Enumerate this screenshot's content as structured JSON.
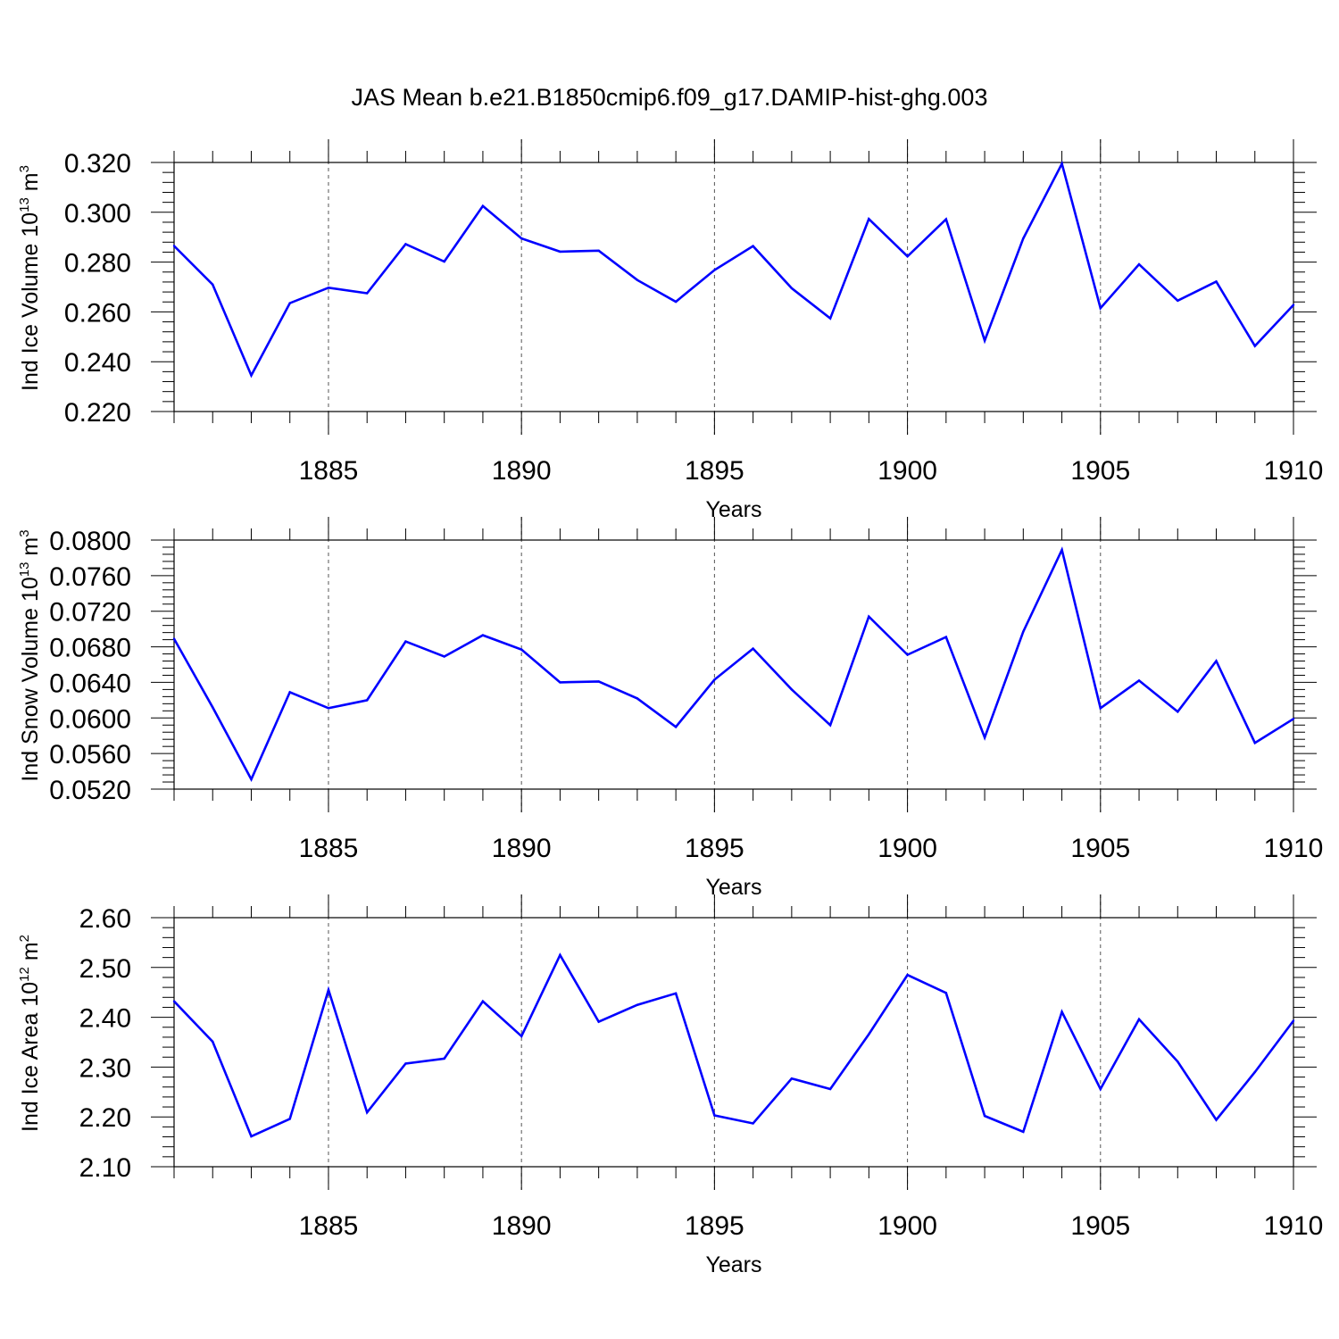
{
  "title": "JAS Mean b.e21.B1850cmip6.f09_g17.DAMIP-hist-ghg.003",
  "colors": {
    "line": "#0000ff",
    "axis": "#000000",
    "grid": "#555555"
  },
  "chart_data": [
    {
      "type": "line",
      "ylabel": "Ind Ice Volume",
      "yunit": {
        "base": "10",
        "exp": "13",
        "unit": "m",
        "unit_exp": "3"
      },
      "xlabel": "Years",
      "xlim": [
        1881,
        1910
      ],
      "ylim": [
        0.22,
        0.32
      ],
      "yticks": [
        "0.220",
        "0.240",
        "0.260",
        "0.280",
        "0.300",
        "0.320"
      ],
      "xticks": [
        "1885",
        "1890",
        "1895",
        "1900",
        "1905",
        "1910"
      ],
      "grid": "vertical dashed at major x ticks",
      "x": [
        1881,
        1882,
        1883,
        1884,
        1885,
        1886,
        1887,
        1888,
        1889,
        1890,
        1891,
        1892,
        1893,
        1894,
        1895,
        1896,
        1897,
        1898,
        1899,
        1900,
        1901,
        1902,
        1903,
        1904,
        1905,
        1906,
        1907,
        1908,
        1909,
        1910
      ],
      "values": [
        0.2865,
        0.271,
        0.2345,
        0.2635,
        0.2697,
        0.2675,
        0.2872,
        0.2802,
        0.3025,
        0.2895,
        0.2842,
        0.2846,
        0.2728,
        0.2641,
        0.2768,
        0.2864,
        0.2695,
        0.2574,
        0.2973,
        0.2823,
        0.2972,
        0.2485,
        0.2895,
        0.3195,
        0.2615,
        0.2791,
        0.2645,
        0.2722,
        0.2463,
        0.2628
      ]
    },
    {
      "type": "line",
      "ylabel": "Ind Snow Volume",
      "yunit": {
        "base": "10",
        "exp": "13",
        "unit": "m",
        "unit_exp": "3"
      },
      "xlabel": "Years",
      "xlim": [
        1881,
        1910
      ],
      "ylim": [
        0.052,
        0.08
      ],
      "yticks": [
        "0.0520",
        "0.0560",
        "0.0600",
        "0.0640",
        "0.0680",
        "0.0720",
        "0.0760",
        "0.0800"
      ],
      "xticks": [
        "1885",
        "1890",
        "1895",
        "1900",
        "1905",
        "1910"
      ],
      "grid": "vertical dashed at major x ticks",
      "x": [
        1881,
        1882,
        1883,
        1884,
        1885,
        1886,
        1887,
        1888,
        1889,
        1890,
        1891,
        1892,
        1893,
        1894,
        1895,
        1896,
        1897,
        1898,
        1899,
        1900,
        1901,
        1902,
        1903,
        1904,
        1905,
        1906,
        1907,
        1908,
        1909,
        1910
      ],
      "values": [
        0.0689,
        0.0612,
        0.0531,
        0.0629,
        0.0611,
        0.062,
        0.0686,
        0.0669,
        0.0693,
        0.0677,
        0.064,
        0.0641,
        0.0622,
        0.059,
        0.0643,
        0.0678,
        0.0632,
        0.0592,
        0.0714,
        0.0671,
        0.0691,
        0.0578,
        0.0697,
        0.0789,
        0.0611,
        0.0642,
        0.0607,
        0.0664,
        0.0572,
        0.0599
      ]
    },
    {
      "type": "line",
      "ylabel": "Ind Ice Area",
      "yunit": {
        "base": "10",
        "exp": "12",
        "unit": "m",
        "unit_exp": "2"
      },
      "xlabel": "Years",
      "xlim": [
        1881,
        1910
      ],
      "ylim": [
        2.1,
        2.6
      ],
      "yticks": [
        "2.10",
        "2.20",
        "2.30",
        "2.40",
        "2.50",
        "2.60"
      ],
      "xticks": [
        "1885",
        "1890",
        "1895",
        "1900",
        "1905",
        "1910"
      ],
      "grid": "vertical dashed at major x ticks",
      "x": [
        1881,
        1882,
        1883,
        1884,
        1885,
        1886,
        1887,
        1888,
        1889,
        1890,
        1891,
        1892,
        1893,
        1894,
        1895,
        1896,
        1897,
        1898,
        1899,
        1900,
        1901,
        1902,
        1903,
        1904,
        1905,
        1906,
        1907,
        1908,
        1909,
        1910
      ],
      "values": [
        2.432,
        2.351,
        2.161,
        2.196,
        2.455,
        2.209,
        2.307,
        2.317,
        2.432,
        2.362,
        2.525,
        2.391,
        2.425,
        2.448,
        2.203,
        2.187,
        2.277,
        2.256,
        2.366,
        2.485,
        2.449,
        2.202,
        2.17,
        2.411,
        2.256,
        2.396,
        2.311,
        2.194,
        2.29,
        2.393
      ]
    }
  ]
}
